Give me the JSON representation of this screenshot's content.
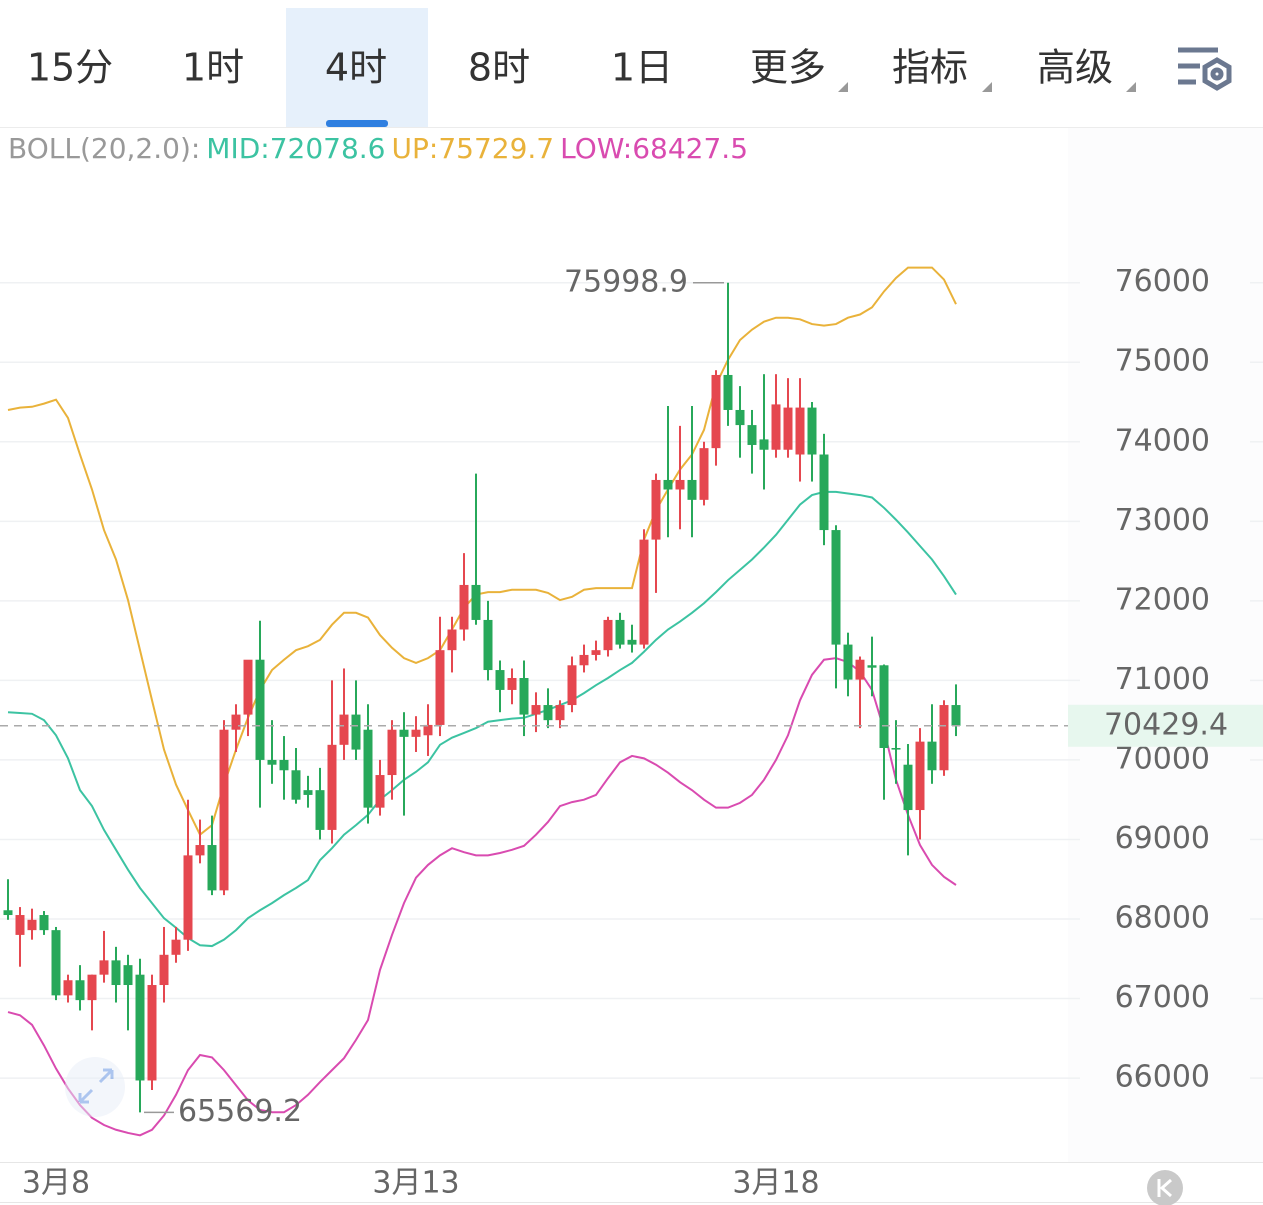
{
  "toolbar": {
    "tabs": [
      "15分",
      "1时",
      "4时",
      "8时",
      "1日",
      "更多",
      "指标",
      "高级"
    ],
    "selected": 2
  },
  "chart_data": {
    "type": "candlestick",
    "indicator_label": "BOLL(20,2.0):",
    "categories": [
      null,
      null,
      null,
      null,
      "3月8",
      null,
      null,
      null,
      null,
      null,
      null,
      null,
      null,
      null,
      null,
      null,
      null,
      null,
      null,
      null,
      null,
      null,
      null,
      null,
      null,
      null,
      null,
      null,
      null,
      null,
      null,
      null,
      null,
      null,
      "3月13",
      null,
      null,
      null,
      null,
      null,
      null,
      null,
      null,
      null,
      null,
      null,
      null,
      null,
      null,
      null,
      null,
      null,
      null,
      null,
      null,
      null,
      null,
      null,
      null,
      null,
      null,
      null,
      null,
      null,
      "3月18",
      null,
      null,
      null,
      null,
      null,
      null,
      null,
      null,
      null,
      null,
      null,
      null,
      null,
      null,
      null
    ],
    "open": [
      68110,
      67800,
      67860,
      68050,
      67860,
      67040,
      67230,
      66980,
      67300,
      67480,
      67420,
      67300,
      65970,
      67170,
      67550,
      67740,
      68800,
      68930,
      68360,
      70380,
      70570,
      71260,
      70000,
      70000,
      69870,
      69620,
      69620,
      69120,
      70190,
      70570,
      70380,
      69400,
      69810,
      70380,
      70290,
      70310,
      70440,
      71380,
      71640,
      72200,
      71760,
      71130,
      70880,
      71030,
      70570,
      70690,
      70500,
      70690,
      71190,
      71320,
      71380,
      71760,
      71510,
      71450,
      72770,
      73520,
      73400,
      73520,
      73270,
      73920,
      74840,
      74400,
      74210,
      74030,
      73900,
      73900,
      73840,
      74430,
      73840,
      72890,
      71450,
      71010,
      71190,
      71190,
      70150,
      69940,
      69370,
      70230,
      69870,
      70690
    ],
    "high": [
      68500,
      68150,
      68130,
      68100,
      67900,
      67300,
      67420,
      67300,
      67850,
      67650,
      67550,
      67500,
      67300,
      67900,
      67900,
      69500,
      69250,
      69300,
      70500,
      70700,
      71250,
      71750,
      70500,
      70300,
      70150,
      69800,
      69900,
      71000,
      71150,
      71000,
      70700,
      70000,
      70500,
      70600,
      70550,
      70700,
      71800,
      71800,
      72600,
      73600,
      72000,
      71250,
      71150,
      71250,
      70850,
      70900,
      70750,
      71300,
      71450,
      71500,
      71800,
      71850,
      71700,
      72900,
      73600,
      74450,
      74200,
      74450,
      74000,
      74900,
      75998.9,
      74700,
      74400,
      74850,
      74850,
      74800,
      74800,
      74500,
      74100,
      72950,
      71600,
      71300,
      71550,
      71200,
      70500,
      70200,
      70400,
      70700,
      70750,
      70950
    ],
    "low": [
      67990,
      67400,
      67740,
      67800,
      66980,
      66950,
      66850,
      66600,
      67200,
      66950,
      66600,
      65569.2,
      65850,
      66950,
      67450,
      67600,
      68700,
      68300,
      68300,
      70100,
      70300,
      69400,
      69700,
      69500,
      69450,
      69400,
      69000,
      68950,
      70000,
      70000,
      69200,
      69300,
      69500,
      69300,
      70100,
      70050,
      70300,
      71100,
      71500,
      71700,
      71000,
      70600,
      70700,
      70300,
      70350,
      70400,
      70400,
      70600,
      71100,
      71250,
      71300,
      71400,
      71350,
      71400,
      72100,
      72800,
      72900,
      72800,
      73200,
      73700,
      74200,
      73800,
      73600,
      73400,
      73800,
      73800,
      73500,
      73500,
      72700,
      70900,
      70800,
      70400,
      70800,
      69500,
      69700,
      68800,
      69000,
      69700,
      69800,
      70300
    ],
    "close": [
      68050,
      68050,
      67990,
      67860,
      67040,
      67230,
      66980,
      67300,
      67480,
      67170,
      67170,
      65970,
      67170,
      67550,
      67740,
      68800,
      68930,
      68360,
      70380,
      70570,
      71260,
      70000,
      69940,
      69870,
      69500,
      69560,
      69120,
      70190,
      70570,
      70130,
      69400,
      69810,
      70380,
      70290,
      70380,
      70440,
      71380,
      71640,
      72200,
      71760,
      71130,
      70880,
      71030,
      70570,
      70690,
      70500,
      70690,
      71190,
      71320,
      71380,
      71760,
      71450,
      71450,
      72770,
      73520,
      73400,
      73520,
      73270,
      73920,
      74840,
      74400,
      74210,
      73960,
      73900,
      74470,
      74430,
      74430,
      73840,
      72890,
      71450,
      71010,
      71260,
      71160,
      70150,
      70130,
      69370,
      70230,
      69870,
      70690,
      70429.4
    ],
    "up_color": "#e5474f",
    "down_color": "#27a85a",
    "series": [
      {
        "name": "MID:72078.6",
        "color": "#3cc3a2",
        "values": [
          70600,
          70590,
          70580,
          70500,
          70310,
          70020,
          69620,
          69420,
          69120,
          68870,
          68620,
          68390,
          68200,
          68010,
          67890,
          67760,
          67670,
          67660,
          67740,
          67860,
          68010,
          68110,
          68200,
          68300,
          68390,
          68490,
          68740,
          68890,
          69060,
          69180,
          69310,
          69500,
          69620,
          69750,
          69850,
          69970,
          70190,
          70280,
          70340,
          70400,
          70480,
          70500,
          70520,
          70530,
          70580,
          70630,
          70690,
          70750,
          70840,
          70940,
          71030,
          71130,
          71220,
          71360,
          71510,
          71640,
          71740,
          71850,
          71970,
          72110,
          72260,
          72390,
          72520,
          72670,
          72830,
          73020,
          73210,
          73330,
          73370,
          73370,
          73350,
          73330,
          73300,
          73170,
          73020,
          72860,
          72690,
          72520,
          72310,
          72078.6
        ]
      },
      {
        "name": "UP:75729.7",
        "color": "#e9b23a",
        "values": [
          74400,
          74430,
          74440,
          74480,
          74530,
          74300,
          73840,
          73400,
          72890,
          72520,
          72010,
          71380,
          70750,
          70130,
          69690,
          69370,
          69060,
          69180,
          69690,
          70130,
          70530,
          70880,
          71130,
          71260,
          71380,
          71430,
          71510,
          71700,
          71850,
          71850,
          71790,
          71570,
          71410,
          71280,
          71220,
          71280,
          71380,
          71640,
          71910,
          72080,
          72110,
          72110,
          72140,
          72140,
          72140,
          72100,
          72010,
          72050,
          72140,
          72160,
          72160,
          72160,
          72160,
          72770,
          73140,
          73400,
          73650,
          73840,
          74150,
          74720,
          75030,
          75280,
          75410,
          75510,
          75560,
          75560,
          75540,
          75480,
          75460,
          75480,
          75560,
          75600,
          75690,
          75890,
          76060,
          76190,
          76190,
          76190,
          76040,
          75729.7
        ]
      },
      {
        "name": "LOW:68427.5",
        "color": "#d94bb0",
        "values": [
          66830,
          66790,
          66670,
          66410,
          66120,
          65870,
          65660,
          65500,
          65410,
          65350,
          65310,
          65280,
          65350,
          65530,
          65790,
          66100,
          66290,
          66260,
          66100,
          65910,
          65720,
          65600,
          65570,
          65570,
          65660,
          65790,
          65950,
          66100,
          66250,
          66480,
          66730,
          67360,
          67800,
          68200,
          68520,
          68680,
          68800,
          68890,
          68840,
          68800,
          68800,
          68830,
          68870,
          68920,
          69060,
          69220,
          69420,
          69470,
          69500,
          69560,
          69770,
          69970,
          70050,
          70020,
          69940,
          69840,
          69720,
          69620,
          69500,
          69400,
          69400,
          69460,
          69560,
          69750,
          70000,
          70310,
          70750,
          71070,
          71260,
          71280,
          71230,
          71110,
          70880,
          70380,
          69750,
          69310,
          68930,
          68680,
          68530,
          68427.5
        ]
      }
    ],
    "ylim": [
      64970,
      77920
    ],
    "yticks": [
      66000,
      67000,
      68000,
      69000,
      70000,
      71000,
      72000,
      73000,
      74000,
      75000,
      76000
    ],
    "grid": true
  }
}
